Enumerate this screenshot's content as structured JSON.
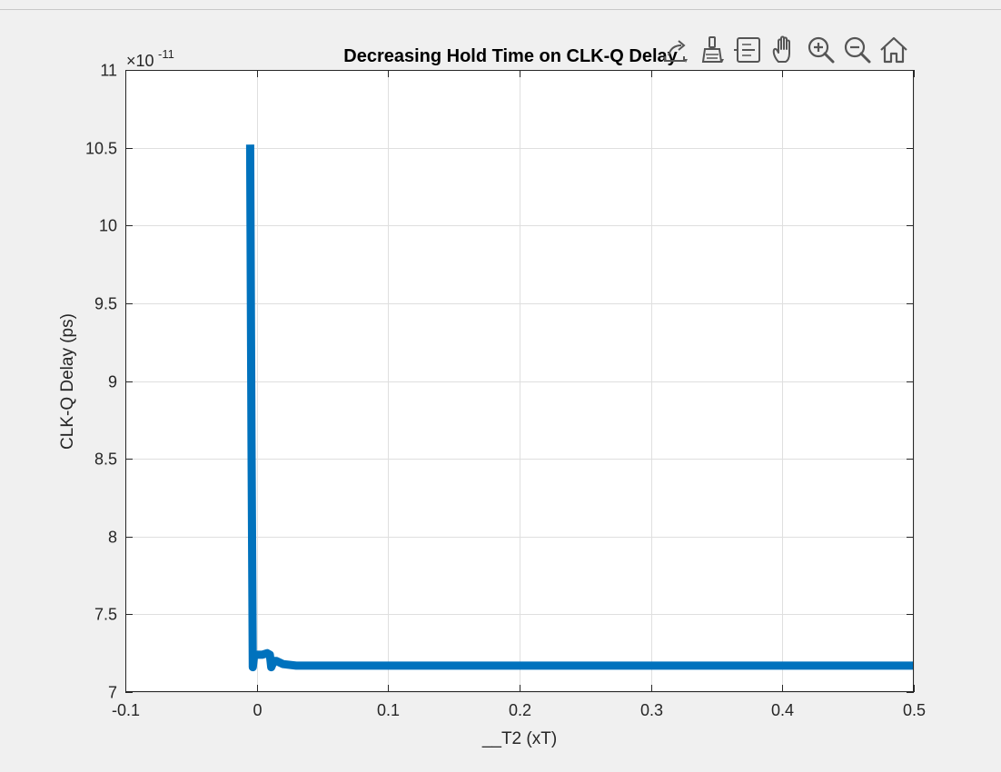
{
  "window": {
    "background": "#f0f0f0"
  },
  "toolbar": {
    "buttons": [
      {
        "name": "export-icon"
      },
      {
        "name": "brush-icon"
      },
      {
        "name": "datatip-icon"
      },
      {
        "name": "pan-hand-icon"
      },
      {
        "name": "zoom-in-icon"
      },
      {
        "name": "zoom-out-icon"
      },
      {
        "name": "home-icon"
      }
    ]
  },
  "chart_data": {
    "type": "line",
    "title": "Decreasing Hold Time on CLK-Q Delay",
    "xlabel": "__T2 (xT)",
    "ylabel": "CLK-Q Delay (ps)",
    "y_exponent_base": "×10",
    "y_exponent_power": "-11",
    "xlim": [
      -0.1,
      0.5
    ],
    "ylim": [
      7,
      11
    ],
    "x_ticks": [
      -0.1,
      0,
      0.1,
      0.2,
      0.3,
      0.4,
      0.5
    ],
    "x_tick_labels": [
      "-0.1",
      "0",
      "0.1",
      "0.2",
      "0.3",
      "0.4",
      "0.5"
    ],
    "y_ticks": [
      7,
      7.5,
      8,
      8.5,
      9,
      9.5,
      10,
      10.5,
      11
    ],
    "y_tick_labels": [
      "7",
      "7.5",
      "8",
      "8.5",
      "9",
      "9.5",
      "10",
      "10.5",
      "11"
    ],
    "grid": true,
    "line_color": "#0072BD",
    "series": [
      {
        "x": [
          -0.005,
          -0.004,
          -0.003,
          -0.002,
          0.0,
          0.004,
          0.008,
          0.01,
          0.011,
          0.013,
          0.015,
          0.02,
          0.03,
          0.05,
          0.1,
          0.2,
          0.3,
          0.37,
          0.4,
          0.5
        ],
        "y": [
          10.52,
          8.6,
          7.16,
          7.24,
          7.24,
          7.24,
          7.25,
          7.24,
          7.16,
          7.2,
          7.2,
          7.18,
          7.17,
          7.17,
          7.17,
          7.17,
          7.17,
          7.17,
          7.17,
          7.17
        ]
      }
    ]
  }
}
